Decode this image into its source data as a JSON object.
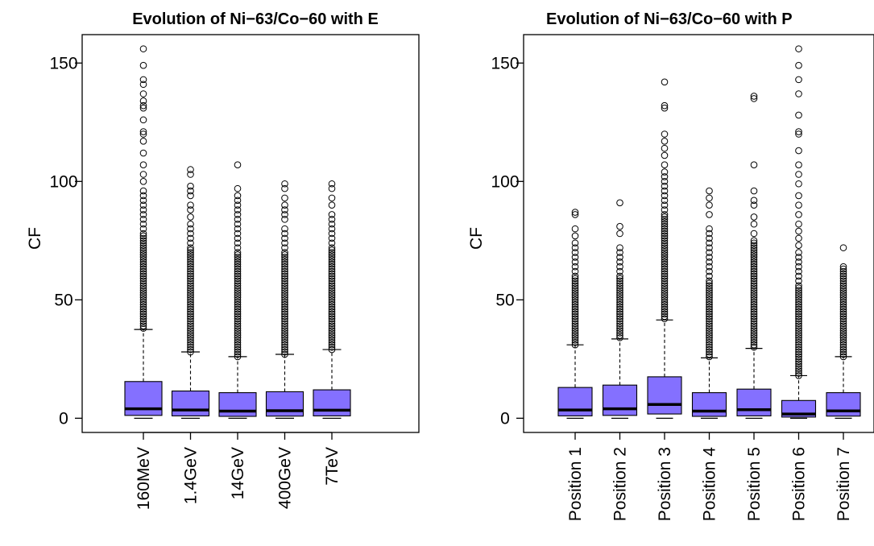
{
  "chart_data": [
    {
      "type": "boxplot",
      "title": "Evolution of Ni−63/Co−60 with E",
      "xlabel": "",
      "ylabel": "CF",
      "ylim": [
        -6,
        162
      ],
      "yticks": [
        "0",
        "50",
        "100",
        "150"
      ],
      "ytick_values": [
        0,
        50,
        100,
        150
      ],
      "box_color": "#8470FF",
      "categories": [
        "160MeV",
        "1.4GeV",
        "14GeV",
        "400GeV",
        "7TeV"
      ],
      "boxes": [
        {
          "min": 0,
          "q1": 1.2,
          "median": 4.0,
          "q3": 15.5,
          "whisker_high": 37.5,
          "outliers": [
            38,
            39,
            40,
            41,
            42,
            43,
            44,
            45,
            46,
            47,
            48,
            49,
            50,
            51,
            52,
            53,
            54,
            55,
            56,
            57,
            58,
            59,
            60,
            61,
            62,
            63,
            64,
            65,
            66,
            67,
            68,
            69,
            70,
            71,
            72,
            73,
            74,
            75,
            76,
            77,
            78,
            80,
            82,
            84,
            86,
            88,
            90,
            92,
            94,
            96,
            100,
            103,
            107,
            112,
            117,
            120,
            121,
            126,
            131,
            132,
            134,
            137,
            141,
            143,
            149,
            156
          ]
        },
        {
          "min": 0,
          "q1": 1.0,
          "median": 3.5,
          "q3": 11.5,
          "whisker_high": 28,
          "outliers": [
            28,
            29,
            30,
            31,
            32,
            33,
            34,
            35,
            36,
            37,
            38,
            39,
            40,
            41,
            42,
            43,
            44,
            45,
            46,
            47,
            48,
            49,
            50,
            51,
            52,
            53,
            54,
            55,
            56,
            57,
            58,
            59,
            60,
            61,
            62,
            63,
            64,
            65,
            66,
            67,
            68,
            69,
            70,
            71,
            72,
            74,
            76,
            78,
            80,
            82,
            85,
            88,
            90,
            94,
            96,
            98,
            103,
            105
          ]
        },
        {
          "min": 0,
          "q1": 0.8,
          "median": 3.0,
          "q3": 10.8,
          "whisker_high": 26,
          "outliers": [
            26,
            27,
            28,
            29,
            30,
            31,
            32,
            33,
            34,
            35,
            36,
            37,
            38,
            39,
            40,
            41,
            42,
            43,
            44,
            45,
            46,
            47,
            48,
            49,
            50,
            51,
            52,
            53,
            54,
            55,
            56,
            57,
            58,
            59,
            60,
            61,
            62,
            63,
            64,
            65,
            66,
            67,
            68,
            69,
            70,
            72,
            74,
            76,
            78,
            80,
            82,
            84,
            86,
            88,
            90,
            92,
            94,
            97,
            107
          ]
        },
        {
          "min": 0,
          "q1": 0.9,
          "median": 3.2,
          "q3": 11.2,
          "whisker_high": 27,
          "outliers": [
            27,
            28,
            29,
            30,
            31,
            32,
            33,
            34,
            35,
            36,
            37,
            38,
            39,
            40,
            41,
            42,
            43,
            44,
            45,
            46,
            47,
            48,
            49,
            50,
            51,
            52,
            53,
            54,
            55,
            56,
            57,
            58,
            59,
            60,
            61,
            62,
            63,
            64,
            65,
            66,
            67,
            68,
            69,
            70,
            72,
            74,
            76,
            78,
            80,
            84,
            86,
            88,
            90,
            93,
            97,
            99
          ]
        },
        {
          "min": 0,
          "q1": 1.0,
          "median": 3.4,
          "q3": 12.0,
          "whisker_high": 29,
          "outliers": [
            29,
            30,
            31,
            32,
            33,
            34,
            35,
            36,
            37,
            38,
            39,
            40,
            41,
            42,
            43,
            44,
            45,
            46,
            47,
            48,
            49,
            50,
            51,
            52,
            53,
            54,
            55,
            56,
            57,
            58,
            59,
            60,
            61,
            62,
            63,
            64,
            65,
            66,
            67,
            68,
            69,
            70,
            71,
            72,
            74,
            76,
            78,
            80,
            82,
            84,
            86,
            90,
            93,
            97,
            99
          ]
        }
      ]
    },
    {
      "type": "boxplot",
      "title": "Evolution of Ni−63/Co−60 with P",
      "xlabel": "",
      "ylabel": "CF",
      "ylim": [
        -6,
        162
      ],
      "yticks": [
        "0",
        "50",
        "100",
        "150"
      ],
      "ytick_values": [
        0,
        50,
        100,
        150
      ],
      "box_color": "#8470FF",
      "categories": [
        "Position 1",
        "Position 2",
        "Position 3",
        "Position 4",
        "Position 5",
        "Position 6",
        "Position 7"
      ],
      "boxes": [
        {
          "min": 0,
          "q1": 1.0,
          "median": 3.5,
          "q3": 13.0,
          "whisker_high": 31,
          "outliers": [
            31,
            32,
            33,
            34,
            35,
            36,
            37,
            38,
            39,
            40,
            41,
            42,
            43,
            44,
            45,
            46,
            47,
            48,
            49,
            50,
            51,
            52,
            53,
            54,
            55,
            56,
            57,
            58,
            59,
            60,
            62,
            64,
            66,
            68,
            70,
            72,
            74,
            77,
            80,
            86,
            87
          ]
        },
        {
          "min": 0,
          "q1": 1.2,
          "median": 4.0,
          "q3": 14.0,
          "whisker_high": 33.5,
          "outliers": [
            34,
            35,
            36,
            37,
            38,
            39,
            40,
            41,
            42,
            43,
            44,
            45,
            46,
            47,
            48,
            49,
            50,
            51,
            52,
            53,
            54,
            55,
            56,
            57,
            58,
            59,
            60,
            62,
            64,
            66,
            68,
            70,
            72,
            78,
            81,
            91
          ]
        },
        {
          "min": 0,
          "q1": 1.8,
          "median": 5.8,
          "q3": 17.5,
          "whisker_high": 41.5,
          "outliers": [
            42,
            43,
            44,
            45,
            46,
            47,
            48,
            49,
            50,
            51,
            52,
            53,
            54,
            55,
            56,
            57,
            58,
            59,
            60,
            61,
            62,
            63,
            64,
            65,
            66,
            67,
            68,
            69,
            70,
            71,
            72,
            73,
            74,
            75,
            76,
            77,
            78,
            79,
            80,
            81,
            82,
            83,
            84,
            85,
            86,
            88,
            90,
            92,
            94,
            96,
            98,
            100,
            102,
            104,
            107,
            111,
            114,
            117,
            120,
            131,
            132,
            142
          ]
        },
        {
          "min": 0,
          "q1": 0.8,
          "median": 3.0,
          "q3": 10.8,
          "whisker_high": 25.5,
          "outliers": [
            26,
            27,
            28,
            29,
            30,
            31,
            32,
            33,
            34,
            35,
            36,
            37,
            38,
            39,
            40,
            41,
            42,
            43,
            44,
            45,
            46,
            47,
            48,
            49,
            50,
            51,
            52,
            53,
            54,
            55,
            56,
            57,
            58,
            60,
            62,
            64,
            66,
            68,
            70,
            72,
            74,
            76,
            78,
            80,
            86,
            90,
            93,
            96
          ]
        },
        {
          "min": 0,
          "q1": 1.0,
          "median": 3.6,
          "q3": 12.3,
          "whisker_high": 29.5,
          "outliers": [
            30,
            31,
            32,
            33,
            34,
            35,
            36,
            37,
            38,
            39,
            40,
            41,
            42,
            43,
            44,
            45,
            46,
            47,
            48,
            49,
            50,
            51,
            52,
            53,
            54,
            55,
            56,
            57,
            58,
            59,
            60,
            61,
            62,
            63,
            64,
            65,
            66,
            67,
            68,
            69,
            70,
            71,
            72,
            73,
            74,
            75,
            78,
            82,
            85,
            90,
            92,
            96,
            107,
            135,
            136
          ]
        },
        {
          "min": 0,
          "q1": 0.5,
          "median": 1.8,
          "q3": 7.5,
          "whisker_high": 18,
          "outliers": [
            18,
            19,
            20,
            21,
            22,
            23,
            24,
            25,
            26,
            27,
            28,
            29,
            30,
            31,
            32,
            33,
            34,
            35,
            36,
            37,
            38,
            39,
            40,
            41,
            42,
            43,
            44,
            45,
            46,
            47,
            48,
            49,
            50,
            51,
            52,
            53,
            54,
            55,
            56,
            58,
            60,
            62,
            64,
            66,
            68,
            70,
            73,
            76,
            79,
            82,
            86,
            90,
            94,
            99,
            103,
            107,
            113,
            120,
            121,
            128,
            137,
            143,
            149,
            156
          ]
        },
        {
          "min": 0,
          "q1": 0.9,
          "median": 3.1,
          "q3": 10.8,
          "whisker_high": 26,
          "outliers": [
            26,
            27,
            28,
            29,
            30,
            31,
            32,
            33,
            34,
            35,
            36,
            37,
            38,
            39,
            40,
            41,
            42,
            43,
            44,
            45,
            46,
            47,
            48,
            49,
            50,
            51,
            52,
            53,
            54,
            55,
            56,
            57,
            58,
            59,
            60,
            61,
            62,
            63,
            64,
            72
          ]
        }
      ]
    }
  ]
}
